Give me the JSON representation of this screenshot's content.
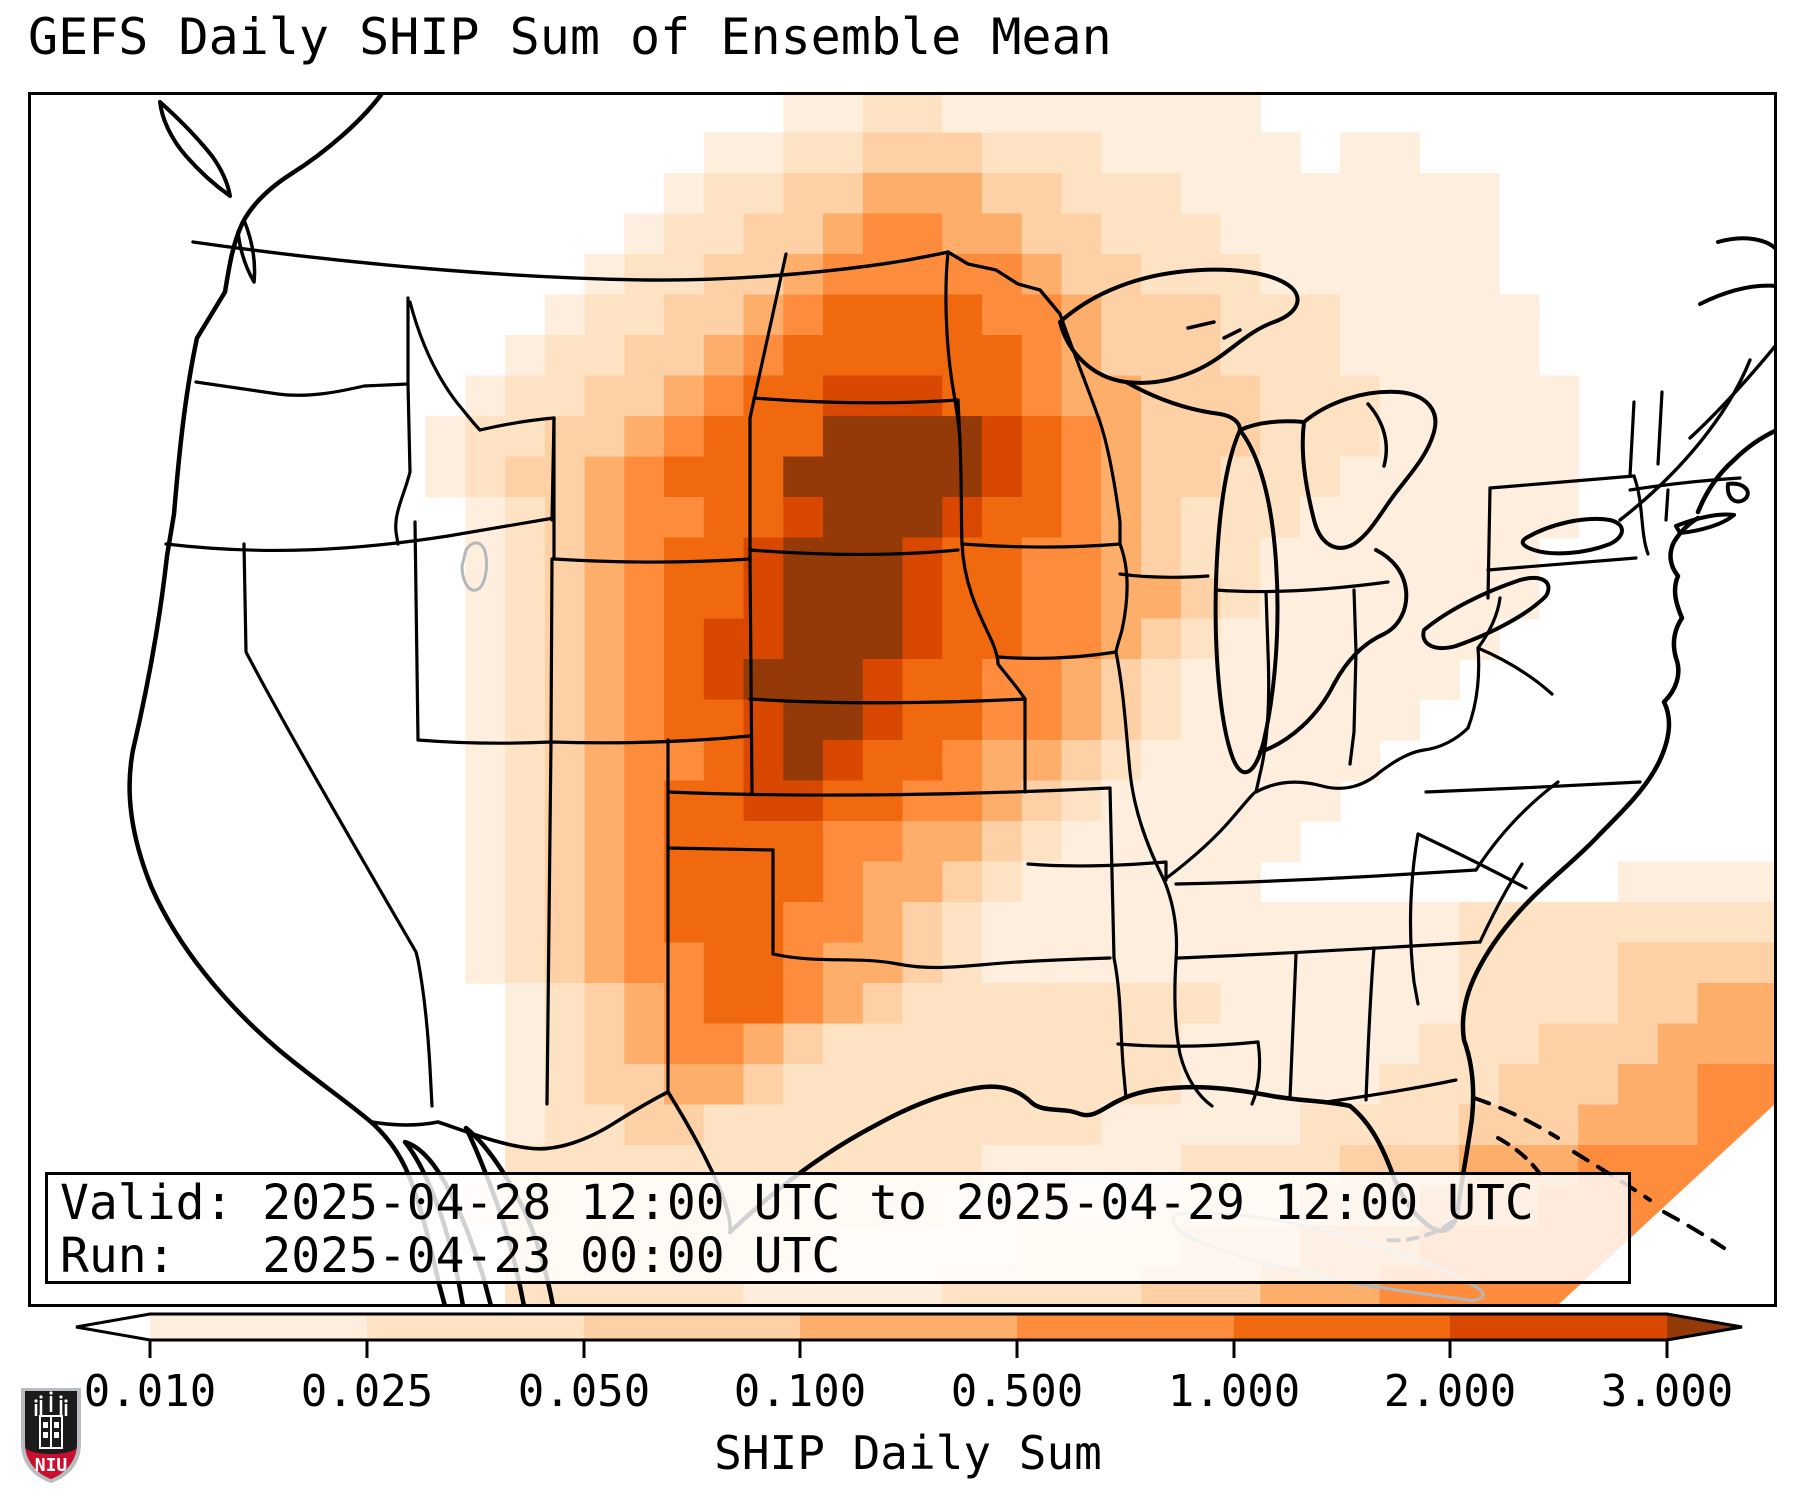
{
  "title": "GEFS Daily SHIP Sum of Ensemble Mean",
  "info_box": {
    "line1": "Valid: 2025-04-28 12:00 UTC to 2025-04-29 12:00 UTC",
    "line2": "Run:   2025-04-23 00:00 UTC"
  },
  "colorbar": {
    "label": "SHIP Daily Sum",
    "ticks": [
      "0.010",
      "0.025",
      "0.050",
      "0.100",
      "0.500",
      "1.000",
      "2.000",
      "3.000"
    ],
    "under_color": "#ffffff",
    "segment_colors": [
      "#feeedd",
      "#fde3c3",
      "#fdd1a5",
      "#fdae6b",
      "#fd8d3c",
      "#f1690e",
      "#d94801"
    ],
    "over_color": "#943a08",
    "outline_color": "#000000"
  },
  "logo": {
    "text": "NIU",
    "shield_color": "#1b1b1b",
    "banner_color": "#c8102e",
    "trim_color": "#b9bdc1"
  },
  "map": {
    "frame_color": "#000000",
    "coast_color": "#000000",
    "state_line_color": "#000000",
    "foreign_line_color": "#b4b8bc",
    "background": "#ffffff"
  },
  "chart_data": {
    "type": "heatmap",
    "title": "GEFS Daily SHIP Sum of Ensemble Mean",
    "value_label": "SHIP Daily Sum",
    "valid_period": "2025-04-28 12:00 UTC to 2025-04-29 12:00 UTC",
    "run_time": "2025-04-23 00:00 UTC",
    "level_boundaries": [
      0.01,
      0.025,
      0.05,
      0.1,
      0.5,
      1.0,
      2.0,
      3.0
    ],
    "palette": [
      "#ffffff",
      "#feeedd",
      "#fde3c3",
      "#fdd1a5",
      "#fdae6b",
      "#fd8d3c",
      "#f1690e",
      "#d94801",
      "#943a08"
    ],
    "legend_position": "bottom",
    "grid_cols": 44,
    "grid_rows": 30,
    "rows_rle": [
      "0x19,1x2,2x2,1x8,0x13",
      "0x17,1x2,2x2,3x3,2x3,1x5,0x1,1x2,0x9",
      "0x16,1x1,2x2,3x2,4x3,3x2,2x3,1x8,0x7",
      "0x15,1x1,2x2,3x2,4x1,5x2,4x2,3x2,2x3,1x7,0x7",
      "0x14,1x1,2x2,3x2,4x1,5x5,4x1,3x2,2x3,1x6,0x7",
      "0x13,1x1,2x2,3x2,4x1,5x1,6x4,5x2,4x1,3x3,2x3,1x5,0x6",
      "0x12,1x1,2x2,3x2,4x1,5x1,6x6,5x1,4x1,3x3,2x3,1x5,0x6",
      "0x11,1x1,2x2,3x2,4x1,5x1,6x2,7x3,6x2,5x1,4x2,3x3,2x3,1x5,0x5",
      "0x10,1x1,2x2,3x2,4x1,5x1,6x3,8x4,7x1,6x1,5x1,4x1,3x3,2x3,1x5,0x5",
      "0x10,1x1,2x1,3x2,4x1,5x1,6x3,8x5,7x1,6x1,5x1,4x1,3x2,2x3,1x6,0x5",
      "0x11,1x1,2x1,3x1,4x1,5x2,6x2,7x1,8x3,7x1,6x2,5x1,4x1,3x1,2x3,1x7,0x5",
      "0x11,1x1,2x1,3x1,4x1,5x1,6x2,7x1,8x3,7x1,6x2,5x2,4x1,3x1,2x2,1x7,0x6",
      "0x11,1x1,2x1,3x1,4x1,5x1,6x2,7x1,8x3,7x1,6x2,5x2,4x2,3x1,2x1,1x7,0x6",
      "0x11,1x1,2x1,3x1,4x1,5x1,6x1,7x2,8x3,7x1,6x2,5x2,4x1,3x1,2x1,1x7,0x7",
      "0x11,1x1,2x1,3x1,4x1,5x1,6x1,7x1,8x3,7x1,6x2,5x2,4x1,3x1,2x1,1x7,0x8",
      "0x11,1x1,2x1,3x1,4x1,5x1,6x2,7x1,8x2,7x1,6x2,5x2,4x1,3x1,2x1,1x6,0x9",
      "0x11,1x1,2x1,3x1,4x1,5x2,6x1,7x1,8x1,7x1,6x2,5x1,4x2,3x1,2x1,1x6,0x10",
      "0x11,1x1,2x1,3x1,4x1,5x1,6x2,7x2,6x2,5x2,4x1,3x1,2x1,1x6,0x11",
      "0x11,1x1,2x1,3x1,4x1,5x1,6x4,5x2,4x2,3x1,2x1,1x6,0x12",
      "0x11,1x1,2x1,3x1,4x1,5x1,6x4,5x1,4x2,3x1,2x1,1x6,0x9,1x4",
      "0x11,1x1,2x1,3x1,4x1,5x1,6x3,5x2,4x1,3x1,2x1,1x12,2x8",
      "0x11,1x1,2x1,3x1,4x1,5x2,6x2,5x1,4x2,3x1,2x1,1x12,2x4,3x4",
      "0x12,1x1,2x1,3x1,4x1,5x1,6x2,5x1,4x1,3x1,2x8,1x6,2x4,3x2,4x2",
      "0x12,1x1,2x1,3x1,4x1,5x2,4x1,3x1,2x9,1x6,2x3,3x3,4x3",
      "0x12,1x1,2x1,3x2,4x2,3x1,2x10,1x5,2x3,3x3,4x2,5x2",
      "0x12,1x1,2x2,3x2,2x10,1x5,2x4,3x3,4x3,5x2",
      "0x12,2x12,1x5,2x4,3x3,4x3,5x5",
      "0x11,1x1,2x11,1x5,2x4,3x3,4x3,5x4,6x2",
      "0x12,2x8,1x5,2x4,3x3,4x3,5x6,6x3",
      "0x12,2x6,1x5,2x5,3x3,4x3,5x6,6x4"
    ]
  }
}
